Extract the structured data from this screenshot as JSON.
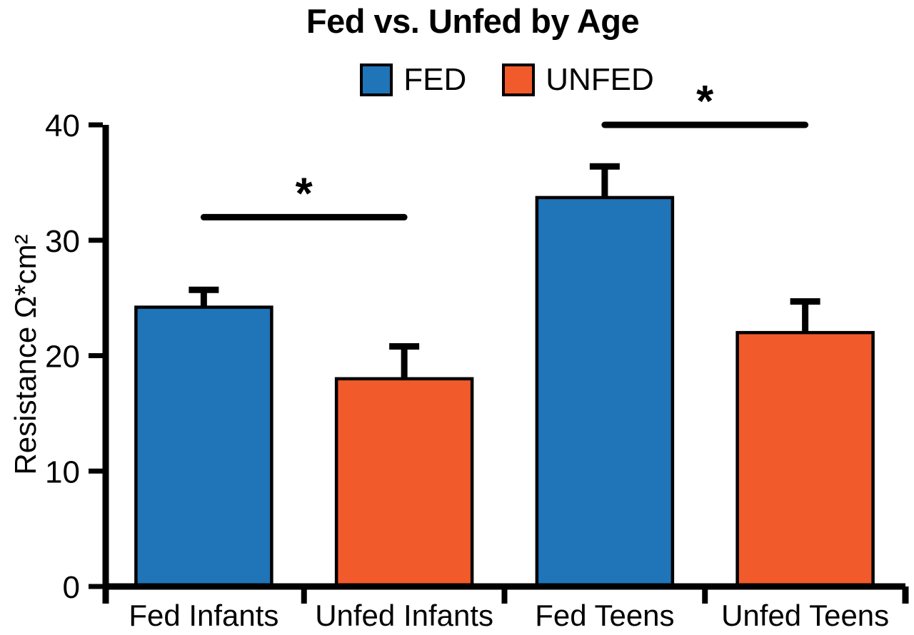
{
  "chart_data": {
    "type": "bar",
    "title": "Fed vs. Unfed by Age",
    "ylabel": "Resistance Ω*cm²",
    "xlabel": "",
    "ylim": [
      0,
      40
    ],
    "yticks": [
      0,
      10,
      20,
      30,
      40
    ],
    "grid": false,
    "legend_position": "top",
    "error_bars": "upper-only",
    "axis_color": "#000000",
    "background": "#FFFFFF",
    "categories": [
      "Fed Infants",
      "Unfed Infants",
      "Fed Teens",
      "Unfed Teens"
    ],
    "legend": [
      {
        "label": "FED",
        "color": "#2074B8"
      },
      {
        "label": "UNFED",
        "color": "#F15A2B"
      }
    ],
    "bars": [
      {
        "category": "Fed Infants",
        "series": "FED",
        "value": 24.2,
        "error_plus": 1.5
      },
      {
        "category": "Unfed Infants",
        "series": "UNFED",
        "value": 18.0,
        "error_plus": 2.8
      },
      {
        "category": "Fed Teens",
        "series": "FED",
        "value": 33.7,
        "error_plus": 2.7
      },
      {
        "category": "Unfed Teens",
        "series": "UNFED",
        "value": 22.0,
        "error_plus": 2.7
      }
    ],
    "significance": [
      {
        "from": "Fed Infants",
        "to": "Unfed Infants",
        "at_value": 32,
        "label": "*"
      },
      {
        "from": "Fed Teens",
        "to": "Unfed Teens",
        "at_value": 40,
        "label": "*"
      }
    ]
  }
}
